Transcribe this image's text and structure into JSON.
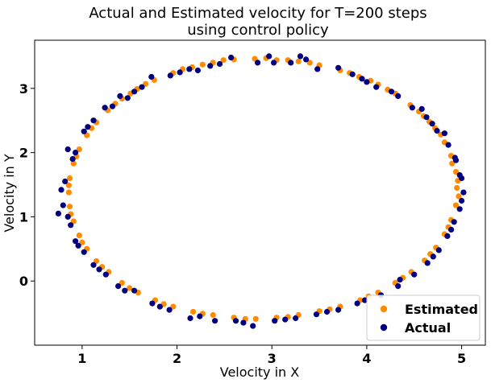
{
  "chart_data": {
    "type": "scatter",
    "title_line1": "Actual and Estimated velocity for T=200 steps",
    "title_line2": "using control policy",
    "xlabel": "Velocity in X",
    "ylabel": "Velocity in Y",
    "xlim": [
      0.5,
      5.25
    ],
    "ylim": [
      -1.0,
      3.75
    ],
    "xticks": [
      1,
      2,
      3,
      4,
      5
    ],
    "yticks": [
      0,
      1,
      2,
      3
    ],
    "grid": false,
    "legend_position": "bottom-right",
    "ellipse": {
      "center_x": 2.9,
      "center_y": 1.45,
      "radius_x": 2.05,
      "radius_y": 2.0
    },
    "series": [
      {
        "name": "Estimated",
        "color": "#ff8c00",
        "points": [
          [
            4.95,
            1.45
          ],
          [
            4.94,
            1.7
          ],
          [
            4.89,
            1.95
          ],
          [
            4.82,
            2.16
          ],
          [
            4.72,
            2.38
          ],
          [
            4.6,
            2.57
          ],
          [
            4.46,
            2.74
          ],
          [
            4.3,
            2.92
          ],
          [
            4.12,
            3.06
          ],
          [
            3.92,
            3.18
          ],
          [
            3.72,
            3.28
          ],
          [
            3.5,
            3.36
          ],
          [
            3.28,
            3.42
          ],
          [
            3.05,
            3.44
          ],
          [
            2.82,
            3.46
          ],
          [
            2.6,
            3.45
          ],
          [
            2.38,
            3.4
          ],
          [
            2.16,
            3.33
          ],
          [
            1.96,
            3.24
          ],
          [
            1.76,
            3.13
          ],
          [
            1.58,
            2.99
          ],
          [
            1.42,
            2.84
          ],
          [
            1.27,
            2.66
          ],
          [
            1.15,
            2.47
          ],
          [
            1.05,
            2.27
          ],
          [
            0.97,
            2.05
          ],
          [
            0.91,
            1.83
          ],
          [
            0.87,
            1.6
          ],
          [
            0.86,
            1.38
          ],
          [
            0.87,
            1.16
          ],
          [
            0.91,
            0.93
          ],
          [
            0.97,
            0.71
          ],
          [
            1.05,
            0.5
          ],
          [
            1.15,
            0.31
          ],
          [
            1.28,
            0.14
          ],
          [
            1.42,
            -0.03
          ],
          [
            1.59,
            -0.18
          ],
          [
            1.77,
            -0.3
          ],
          [
            1.96,
            -0.4
          ],
          [
            2.17,
            -0.48
          ],
          [
            2.38,
            -0.53
          ],
          [
            2.6,
            -0.57
          ],
          [
            2.83,
            -0.59
          ],
          [
            3.05,
            -0.57
          ],
          [
            3.28,
            -0.53
          ],
          [
            3.5,
            -0.47
          ],
          [
            3.72,
            -0.4
          ],
          [
            3.93,
            -0.3
          ],
          [
            4.12,
            -0.18
          ],
          [
            4.3,
            -0.03
          ],
          [
            4.47,
            0.14
          ],
          [
            4.61,
            0.32
          ],
          [
            4.73,
            0.52
          ],
          [
            4.82,
            0.73
          ],
          [
            4.89,
            0.95
          ],
          [
            4.94,
            1.18
          ],
          [
            4.97,
            1.32
          ],
          [
            4.78,
            2.28
          ],
          [
            4.55,
            2.64
          ],
          [
            4.22,
            2.98
          ],
          [
            3.82,
            3.24
          ],
          [
            3.4,
            3.4
          ],
          [
            2.94,
            3.47
          ],
          [
            2.49,
            3.44
          ],
          [
            2.06,
            3.3
          ],
          [
            1.67,
            3.07
          ],
          [
            1.35,
            2.76
          ],
          [
            1.1,
            2.38
          ],
          [
            0.94,
            1.94
          ],
          [
            0.86,
            1.49
          ],
          [
            0.88,
            1.04
          ],
          [
            1.0,
            0.6
          ],
          [
            1.21,
            0.22
          ],
          [
            1.5,
            -0.11
          ],
          [
            1.86,
            -0.36
          ],
          [
            2.27,
            -0.51
          ],
          [
            2.72,
            -0.59
          ],
          [
            3.17,
            -0.56
          ],
          [
            3.61,
            -0.44
          ],
          [
            4.02,
            -0.24
          ],
          [
            4.38,
            0.05
          ],
          [
            4.67,
            0.42
          ],
          [
            4.86,
            0.84
          ],
          [
            4.96,
            1.56
          ],
          [
            4.9,
            1.83
          ],
          [
            4.66,
            2.48
          ],
          [
            4.04,
            3.12
          ],
          [
            3.17,
            3.44
          ],
          [
            2.27,
            3.37
          ],
          [
            1.51,
            2.92
          ]
        ]
      },
      {
        "name": "Actual",
        "color": "#000080",
        "points": [
          [
            5.02,
            1.38
          ],
          [
            4.98,
            1.65
          ],
          [
            4.93,
            1.92
          ],
          [
            4.86,
            2.12
          ],
          [
            4.74,
            2.34
          ],
          [
            4.63,
            2.55
          ],
          [
            4.48,
            2.7
          ],
          [
            4.33,
            2.88
          ],
          [
            4.1,
            3.02
          ],
          [
            3.95,
            3.15
          ],
          [
            3.7,
            3.32
          ],
          [
            3.48,
            3.3
          ],
          [
            3.3,
            3.5
          ],
          [
            3.02,
            3.4
          ],
          [
            2.85,
            3.4
          ],
          [
            2.57,
            3.48
          ],
          [
            2.35,
            3.35
          ],
          [
            2.13,
            3.3
          ],
          [
            1.93,
            3.2
          ],
          [
            1.73,
            3.18
          ],
          [
            1.55,
            2.95
          ],
          [
            1.4,
            2.88
          ],
          [
            1.24,
            2.7
          ],
          [
            1.12,
            2.5
          ],
          [
            1.02,
            2.33
          ],
          [
            0.93,
            2.0
          ],
          [
            0.85,
            2.05
          ],
          [
            0.82,
            1.55
          ],
          [
            0.78,
            1.42
          ],
          [
            0.8,
            1.18
          ],
          [
            0.88,
            0.87
          ],
          [
            0.93,
            0.62
          ],
          [
            1.02,
            0.45
          ],
          [
            1.12,
            0.25
          ],
          [
            1.25,
            0.1
          ],
          [
            1.38,
            -0.08
          ],
          [
            1.55,
            -0.15
          ],
          [
            1.74,
            -0.35
          ],
          [
            1.92,
            -0.45
          ],
          [
            2.14,
            -0.58
          ],
          [
            2.4,
            -0.62
          ],
          [
            2.62,
            -0.62
          ],
          [
            2.8,
            -0.7
          ],
          [
            3.03,
            -0.62
          ],
          [
            3.25,
            -0.58
          ],
          [
            3.47,
            -0.52
          ],
          [
            3.7,
            -0.45
          ],
          [
            3.9,
            -0.35
          ],
          [
            4.15,
            -0.22
          ],
          [
            4.33,
            -0.08
          ],
          [
            4.5,
            0.1
          ],
          [
            4.64,
            0.28
          ],
          [
            4.76,
            0.48
          ],
          [
            4.85,
            0.7
          ],
          [
            4.92,
            0.92
          ],
          [
            4.98,
            1.12
          ],
          [
            5.0,
            1.25
          ],
          [
            4.82,
            2.3
          ],
          [
            4.58,
            2.68
          ],
          [
            4.26,
            2.95
          ],
          [
            3.85,
            3.22
          ],
          [
            3.36,
            3.45
          ],
          [
            2.97,
            3.5
          ],
          [
            2.45,
            3.38
          ],
          [
            2.03,
            3.25
          ],
          [
            1.63,
            3.02
          ],
          [
            1.32,
            2.72
          ],
          [
            1.06,
            2.4
          ],
          [
            0.9,
            1.9
          ],
          [
            0.75,
            1.05
          ],
          [
            0.85,
            1.0
          ],
          [
            0.96,
            0.55
          ],
          [
            1.18,
            0.18
          ],
          [
            1.45,
            -0.15
          ],
          [
            1.82,
            -0.4
          ],
          [
            2.24,
            -0.55
          ],
          [
            2.7,
            -0.65
          ],
          [
            3.14,
            -0.6
          ],
          [
            3.58,
            -0.48
          ],
          [
            3.98,
            -0.3
          ],
          [
            4.35,
            0.02
          ],
          [
            4.7,
            0.38
          ],
          [
            4.89,
            0.8
          ],
          [
            5.0,
            1.6
          ],
          [
            4.94,
            1.88
          ],
          [
            4.69,
            2.45
          ],
          [
            4.0,
            3.1
          ],
          [
            3.2,
            3.4
          ],
          [
            2.22,
            3.28
          ],
          [
            1.48,
            2.85
          ]
        ]
      }
    ]
  }
}
